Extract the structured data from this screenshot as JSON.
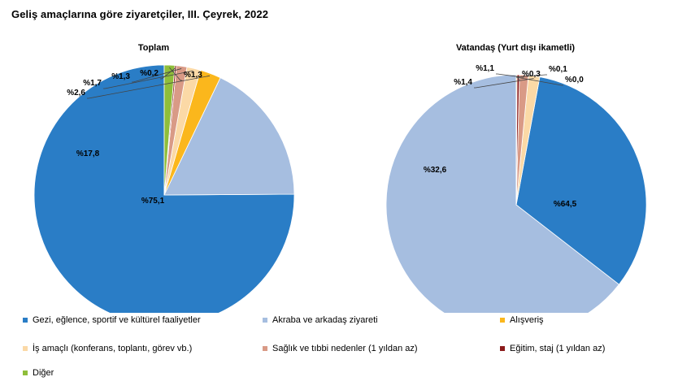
{
  "title": "Geliş amaçlarına göre ziyaretçiler, III. Çeyrek, 2022",
  "colors": {
    "gezi": "#2a7dc6",
    "akraba": "#a6bee0",
    "alisveris": "#fbb71c",
    "is": "#fbd9a6",
    "saglik": "#d99a86",
    "egitim": "#8b1a1a",
    "diger": "#8fbe3a"
  },
  "chart_data": [
    {
      "type": "pie",
      "title": "Toplam",
      "categories": [
        "Gezi, eğlence, sportif ve kültürel faaliyetler",
        "Akraba ve arkadaş ziyareti",
        "Alışveriş",
        "İş amaçlı (konferans, toplantı, görev vb.)",
        "Sağlık ve tıbbi nedenler (1 yıldan az)",
        "Eğitim, staj (1 yıldan az)",
        "Diğer"
      ],
      "values": [
        75.1,
        17.8,
        2.6,
        1.7,
        1.3,
        0.2,
        1.3
      ],
      "labels": [
        "%75,1",
        "%17,8",
        "%2,6",
        "%1,7",
        "%1,3",
        "%0,2",
        "%1,3"
      ]
    },
    {
      "type": "pie",
      "title": "Vatandaş (Yurt dışı ikametli)",
      "categories": [
        "Gezi, eğlence, sportif ve kültürel faaliyetler",
        "Akraba ve arkadaş ziyareti",
        "Alışveriş",
        "İş amaçlı (konferans, toplantı, görev vb.)",
        "Sağlık ve tıbbi nedenler (1 yıldan az)",
        "Eğitim, staj (1 yıldan az)",
        "Diğer"
      ],
      "values": [
        32.6,
        64.5,
        0.1,
        1.4,
        1.1,
        0.3,
        0.0
      ],
      "labels": [
        "%32,6",
        "%64,5",
        "%0,1",
        "%1,4",
        "%1,1",
        "%0,3",
        "%0,0"
      ]
    }
  ],
  "legend": [
    {
      "label": "Gezi, eğlence, sportif ve kültürel faaliyetler",
      "color_key": "gezi"
    },
    {
      "label": "Akraba ve arkadaş ziyareti",
      "color_key": "akraba"
    },
    {
      "label": "Alışveriş",
      "color_key": "alisveris"
    },
    {
      "label": "İş amaçlı (konferans, toplantı, görev vb.)",
      "color_key": "is"
    },
    {
      "label": "Sağlık ve tıbbi nedenler (1 yıldan az)",
      "color_key": "saglik"
    },
    {
      "label": "Eğitim, staj (1 yıldan az)",
      "color_key": "egitim"
    },
    {
      "label": "Diğer",
      "color_key": "diger"
    }
  ]
}
